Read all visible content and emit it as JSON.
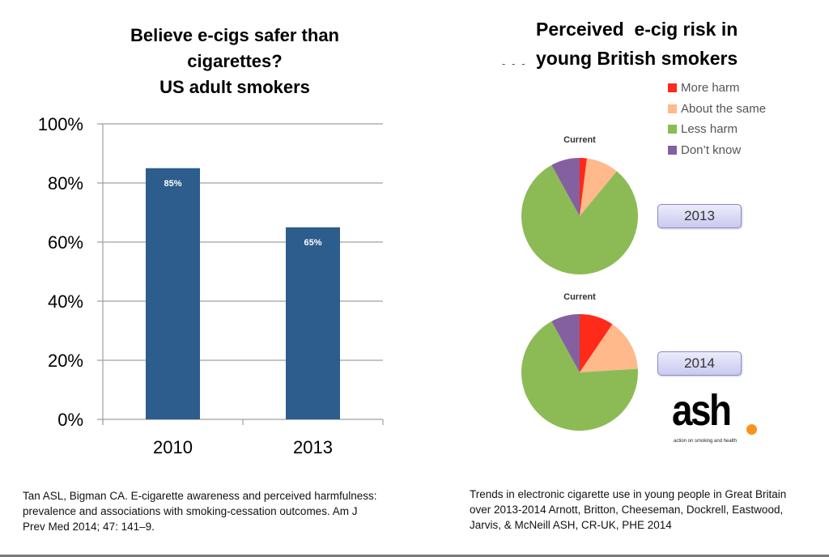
{
  "chart_data": [
    {
      "type": "bar",
      "title": "Believe e-cigs safer than cigarettes? US adult smokers",
      "title_lines": [
        "Believe e-cigs safer than",
        "cigarettes?",
        "US adult smokers"
      ],
      "categories": [
        "2010",
        "2013"
      ],
      "values": [
        85,
        65
      ],
      "data_labels": [
        "85%",
        "65%"
      ],
      "xlabel": "",
      "ylabel": "",
      "ylim": [
        0,
        100
      ],
      "yticks": [
        0,
        20,
        40,
        60,
        80,
        100
      ],
      "ytick_labels": [
        "0%",
        "20%",
        "40%",
        "60%",
        "80%",
        "100%"
      ],
      "grid": true,
      "bar_color": "#2c5d8c",
      "citation": "Tan ASL, Bigman CA. E-cigarette awareness and perceived harmfulness: prevalence and associations with smoking-cessation outcomes. Am J Prev Med 2014; 47: 141–9."
    },
    {
      "type": "pie",
      "title": "Perceived e-cig risk in young British smokers",
      "title_lines": [
        "Perceived  e-cig risk in",
        "young British smokers"
      ],
      "legend": [
        {
          "label": "More harm",
          "color": "#ff2a1a"
        },
        {
          "label": "About the same",
          "color": "#ffb98a"
        },
        {
          "label": "Less harm",
          "color": "#8cbb56"
        },
        {
          "label": "Don’t know",
          "color": "#8560a0"
        }
      ],
      "legend_position": "top-right",
      "pies": [
        {
          "year": "2013",
          "caption": "Current",
          "slices": [
            {
              "label": "More harm",
              "value": 2
            },
            {
              "label": "About the same",
              "value": 9
            },
            {
              "label": "Less harm",
              "value": 81
            },
            {
              "label": "Don’t know",
              "value": 8
            }
          ]
        },
        {
          "year": "2014",
          "caption": "Current",
          "slices": [
            {
              "label": "More harm",
              "value": 9.5
            },
            {
              "label": "About the same",
              "value": 14.5
            },
            {
              "label": "Less harm",
              "value": 68
            },
            {
              "label": "Don’t know",
              "value": 8
            }
          ]
        }
      ],
      "citation": "Trends in electronic cigarette use in young people in Great Britain over  2013-2014  Arnott, Britton, Cheeseman, Dockrell, Eastwood, Jarvis, & McNeill ASH, CR-UK, PHE 2014"
    }
  ],
  "logo": {
    "text": "ash",
    "tagline": "action on smoking and health",
    "dot_color": "#f7941d"
  },
  "decor": {
    "dots": "- - -"
  }
}
